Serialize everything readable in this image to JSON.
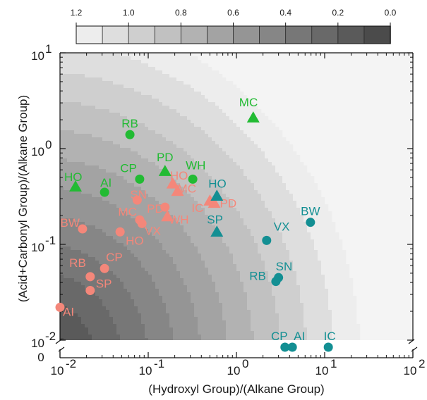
{
  "chart_data": {
    "type": "scatter",
    "title": "",
    "xlabel": "(Hydroxyl Group)/(Alkane Group)",
    "ylabel": "(Acid+Carbonyl Group)/(Alkane Group)",
    "x_scale": "log",
    "y_scale": "log",
    "xlim": [
      0.01,
      100
    ],
    "ylim": [
      0.01,
      10
    ],
    "x_ticks": [
      {
        "value": 0.01,
        "base": "10",
        "exp": "-2"
      },
      {
        "value": 0.1,
        "base": "10",
        "exp": "-1"
      },
      {
        "value": 1,
        "base": "10",
        "exp": "0"
      },
      {
        "value": 10,
        "base": "10",
        "exp": "1"
      },
      {
        "value": 100,
        "base": "10",
        "exp": "2"
      }
    ],
    "y_ticks": [
      {
        "value": 0.01,
        "base": "10",
        "exp": "-2"
      },
      {
        "value": 0.1,
        "base": "10",
        "exp": "-1"
      },
      {
        "value": 1,
        "base": "10",
        "exp": "0"
      },
      {
        "value": 10,
        "base": "10",
        "exp": "1"
      }
    ],
    "y_zero_label": "0",
    "colorbar": {
      "ticks": [
        "1.2",
        "1.0",
        "0.8",
        "0.6",
        "0.4",
        "0.2",
        "0.0"
      ],
      "min": 0.0,
      "max": 1.2,
      "levels": 12
    },
    "colors": {
      "salmon": "#f4877a",
      "green": "#22bb33",
      "teal": "#138f93"
    },
    "series": [
      {
        "color_key": "salmon",
        "marker": "circle",
        "points": [
          {
            "label": "AI",
            "x": 0.01,
            "y": 0.022
          },
          {
            "label": "SP",
            "x": 0.022,
            "y": 0.033
          },
          {
            "label": "RB",
            "x": 0.022,
            "y": 0.046
          },
          {
            "label": "CP",
            "x": 0.032,
            "y": 0.056
          },
          {
            "label": "BW",
            "x": 0.018,
            "y": 0.145
          },
          {
            "label": "VX",
            "x": 0.085,
            "y": 0.165
          },
          {
            "label": "MC",
            "x": 0.08,
            "y": 0.18
          },
          {
            "label": "HO",
            "x": 0.048,
            "y": 0.135
          },
          {
            "label": "PD",
            "x": 0.155,
            "y": 0.245
          },
          {
            "label": "SN",
            "x": 0.075,
            "y": 0.29
          }
        ]
      },
      {
        "color_key": "salmon",
        "marker": "triangle",
        "points": [
          {
            "label": "WH",
            "x": 0.165,
            "y": 0.195
          },
          {
            "label": "MC",
            "x": 0.215,
            "y": 0.36
          },
          {
            "label": "HO",
            "x": 0.19,
            "y": 0.43
          },
          {
            "label": "IC",
            "x": 0.5,
            "y": 0.285
          },
          {
            "label": "PD",
            "x": 0.56,
            "y": 0.27
          }
        ]
      },
      {
        "color_key": "green",
        "marker": "circle",
        "points": [
          {
            "label": "RB",
            "x": 0.062,
            "y": 1.4
          },
          {
            "label": "CP",
            "x": 0.08,
            "y": 0.48
          },
          {
            "label": "AI",
            "x": 0.032,
            "y": 0.35
          },
          {
            "label": "WH",
            "x": 0.32,
            "y": 0.48
          }
        ]
      },
      {
        "color_key": "green",
        "marker": "triangle",
        "points": [
          {
            "label": "HO",
            "x": 0.015,
            "y": 0.4
          },
          {
            "label": "PD",
            "x": 0.155,
            "y": 0.58
          },
          {
            "label": "MC",
            "x": 1.55,
            "y": 2.1
          }
        ]
      },
      {
        "color_key": "teal",
        "marker": "circle",
        "points": [
          {
            "label": "VX",
            "x": 2.2,
            "y": 0.11
          },
          {
            "label": "BW",
            "x": 6.9,
            "y": 0.17
          },
          {
            "label": "SN",
            "x": 3.0,
            "y": 0.045
          },
          {
            "label": "RB",
            "x": 2.8,
            "y": 0.041
          },
          {
            "label": "CP",
            "x": 3.55,
            "y": 0,
            "on_zero": true
          },
          {
            "label": "AI",
            "x": 4.3,
            "y": 0,
            "on_zero": true
          },
          {
            "label": "IC",
            "x": 11,
            "y": 0,
            "on_zero": true
          }
        ]
      },
      {
        "color_key": "teal",
        "marker": "triangle",
        "points": [
          {
            "label": "HO",
            "x": 0.6,
            "y": 0.32
          },
          {
            "label": "SP",
            "x": 0.6,
            "y": 0.135
          }
        ]
      }
    ],
    "grid": false,
    "legend": "none"
  }
}
